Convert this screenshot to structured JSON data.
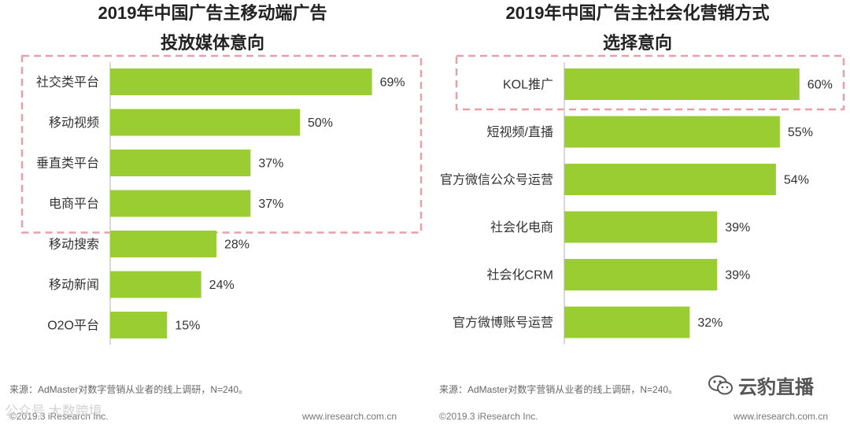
{
  "chart_data": [
    {
      "type": "bar",
      "orientation": "horizontal",
      "title": "2019年中国广告主移动端广告投放媒体意向",
      "title_lines": [
        "2019年中国广告主移动端广告",
        "投放媒体意向"
      ],
      "categories": [
        "社交类平台",
        "移动视频",
        "垂直类平台",
        "电商平台",
        "移动搜索",
        "移动新闻",
        "O2O平台"
      ],
      "values": [
        69,
        50,
        37,
        37,
        28,
        24,
        15
      ],
      "data_labels": [
        "69%",
        "50%",
        "37%",
        "37%",
        "28%",
        "24%",
        "15%"
      ],
      "highlighted_count": 4,
      "xlim": [
        0,
        100
      ],
      "xlabel": "",
      "ylabel": "",
      "grid": false
    },
    {
      "type": "bar",
      "orientation": "horizontal",
      "title": "2019年中国广告主社会化营销方式选择意向",
      "title_lines": [
        "2019年中国广告主社会化营销方式",
        "选择意向"
      ],
      "categories": [
        "KOL推广",
        "短视频/直播",
        "官方微信公众号运营",
        "社会化电商",
        "社会化CRM",
        "官方微博账号运营"
      ],
      "values": [
        60,
        55,
        54,
        39,
        39,
        32
      ],
      "data_labels": [
        "60%",
        "55%",
        "54%",
        "39%",
        "39%",
        "32%"
      ],
      "highlighted_count": 1,
      "xlim": [
        0,
        100
      ],
      "xlabel": "",
      "ylabel": "",
      "grid": false
    }
  ],
  "colors": {
    "bar": "#9acd32",
    "highlight_border": "#e8a0a8",
    "axis": "#cccccc"
  },
  "footer": {
    "left_source": "来源：AdMaster对数字营销从业者的线上调研，N=240。",
    "left_copyright": "©2019.3 iResearch Inc.",
    "left_url": "www.iresearch.com.cn",
    "right_source": "来源：AdMaster对数字营销从业者的线上调研，N=240。",
    "right_copyright": "©2019.3 iResearch Inc.",
    "right_url": "www.iresearch.com.cn"
  },
  "watermarks": {
    "left": "公众号 大数跨境",
    "right": "云豹直播",
    "right_icon": "wechat-icon"
  }
}
